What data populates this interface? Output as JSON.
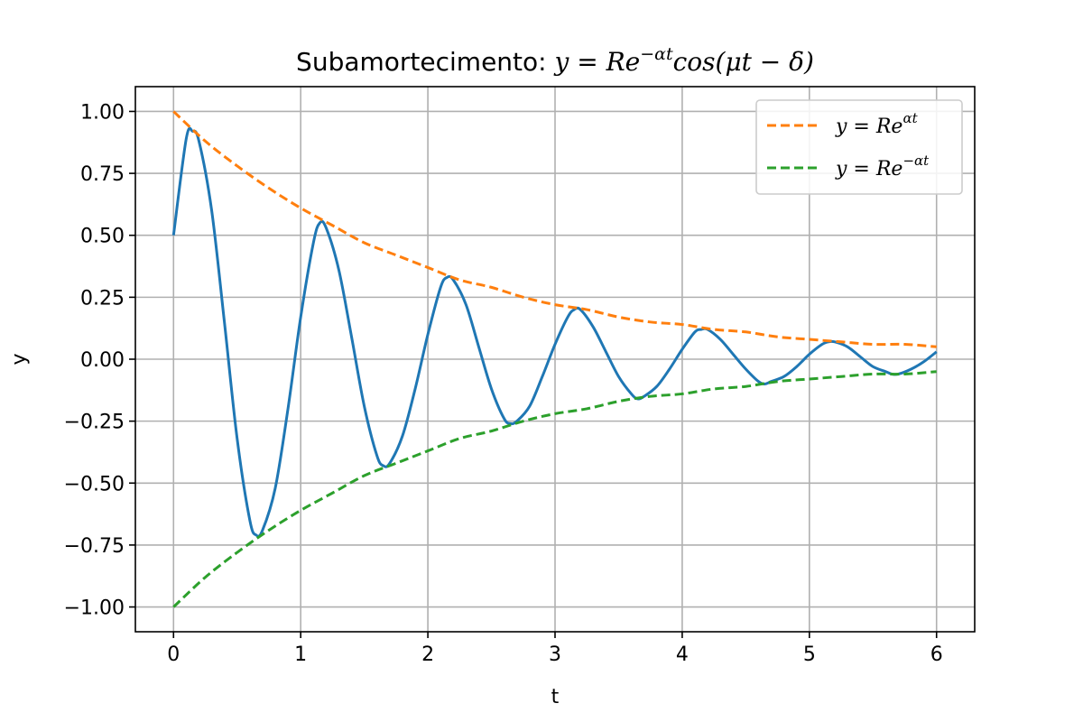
{
  "chart_data": {
    "type": "line",
    "title": {
      "prefix": "Subamortecimento: ",
      "math_base": "y = Re",
      "math_sup": "−αt",
      "math_rest": "cos(μt − δ)"
    },
    "xlabel": "t",
    "ylabel": "y",
    "xlim": [
      -0.3,
      6.3
    ],
    "ylim": [
      -1.1,
      1.1
    ],
    "xticks": [
      0,
      1,
      2,
      3,
      4,
      5,
      6
    ],
    "xtick_labels": [
      "0",
      "1",
      "2",
      "3",
      "4",
      "5",
      "6"
    ],
    "yticks": [
      -1.0,
      -0.75,
      -0.5,
      -0.25,
      0.0,
      0.25,
      0.5,
      0.75,
      1.0
    ],
    "ytick_labels": [
      "−1.00",
      "−0.75",
      "−0.50",
      "−0.25",
      "0.00",
      "0.25",
      "0.50",
      "0.75",
      "1.00"
    ],
    "grid": true,
    "legend_position": "top-right",
    "series": [
      {
        "color": "#1f77b4",
        "style": "solid",
        "x": [
          0,
          0.1,
          0.15,
          0.2,
          0.3,
          0.4,
          0.5,
          0.6,
          0.65,
          0.7,
          0.8,
          0.9,
          1.0,
          1.1,
          1.15,
          1.2,
          1.3,
          1.4,
          1.5,
          1.6,
          1.65,
          1.7,
          1.8,
          1.9,
          2.0,
          2.1,
          2.15,
          2.2,
          2.3,
          2.4,
          2.5,
          2.6,
          2.65,
          2.7,
          2.8,
          2.9,
          3.0,
          3.1,
          3.15,
          3.2,
          3.3,
          3.4,
          3.5,
          3.6,
          3.65,
          3.7,
          3.8,
          3.9,
          4.0,
          4.1,
          4.15,
          4.2,
          4.3,
          4.4,
          4.5,
          4.6,
          4.65,
          4.7,
          4.8,
          4.9,
          5.0,
          5.1,
          5.15,
          5.2,
          5.3,
          5.4,
          5.5,
          5.6,
          5.65,
          5.7,
          5.8,
          5.9,
          6.0
        ],
        "y": [
          0.5,
          0.89,
          0.92,
          0.88,
          0.6,
          0.15,
          -0.32,
          -0.65,
          -0.71,
          -0.69,
          -0.52,
          -0.2,
          0.17,
          0.47,
          0.55,
          0.53,
          0.36,
          0.09,
          -0.19,
          -0.39,
          -0.43,
          -0.42,
          -0.31,
          -0.12,
          0.1,
          0.29,
          0.33,
          0.32,
          0.22,
          0.05,
          -0.12,
          -0.24,
          -0.26,
          -0.25,
          -0.19,
          -0.07,
          0.06,
          0.17,
          0.2,
          0.2,
          0.13,
          0.03,
          -0.07,
          -0.14,
          -0.16,
          -0.15,
          -0.11,
          -0.04,
          0.04,
          0.11,
          0.12,
          0.12,
          0.08,
          0.02,
          -0.04,
          -0.09,
          -0.1,
          -0.09,
          -0.07,
          -0.03,
          0.02,
          0.06,
          0.07,
          0.07,
          0.05,
          0.01,
          -0.03,
          -0.05,
          -0.06,
          -0.06,
          -0.04,
          -0.01,
          0.03
        ]
      },
      {
        "legend": {
          "base": "y = Re",
          "sup": "αt"
        },
        "color": "#ff7f0e",
        "style": "dashed",
        "x": [
          0,
          0.25,
          0.5,
          0.75,
          1.0,
          1.25,
          1.5,
          1.75,
          2.0,
          2.25,
          2.5,
          2.75,
          3.0,
          3.25,
          3.5,
          3.75,
          4.0,
          4.25,
          4.5,
          4.75,
          5.0,
          5.25,
          5.5,
          5.75,
          6.0
        ],
        "y": [
          1.0,
          0.88,
          0.78,
          0.69,
          0.61,
          0.54,
          0.47,
          0.42,
          0.37,
          0.32,
          0.29,
          0.25,
          0.22,
          0.2,
          0.17,
          0.15,
          0.14,
          0.12,
          0.11,
          0.09,
          0.08,
          0.07,
          0.06,
          0.06,
          0.05
        ]
      },
      {
        "legend": {
          "base": "y = Re",
          "sup": "−αt"
        },
        "color": "#2ca02c",
        "style": "dashed",
        "x": [
          0,
          0.25,
          0.5,
          0.75,
          1.0,
          1.25,
          1.5,
          1.75,
          2.0,
          2.25,
          2.5,
          2.75,
          3.0,
          3.25,
          3.5,
          3.75,
          4.0,
          4.25,
          4.5,
          4.75,
          5.0,
          5.25,
          5.5,
          5.75,
          6.0
        ],
        "y": [
          -1.0,
          -0.88,
          -0.78,
          -0.69,
          -0.61,
          -0.54,
          -0.47,
          -0.42,
          -0.37,
          -0.32,
          -0.29,
          -0.25,
          -0.22,
          -0.2,
          -0.17,
          -0.15,
          -0.14,
          -0.12,
          -0.11,
          -0.09,
          -0.08,
          -0.07,
          -0.06,
          -0.06,
          -0.05
        ]
      }
    ]
  }
}
